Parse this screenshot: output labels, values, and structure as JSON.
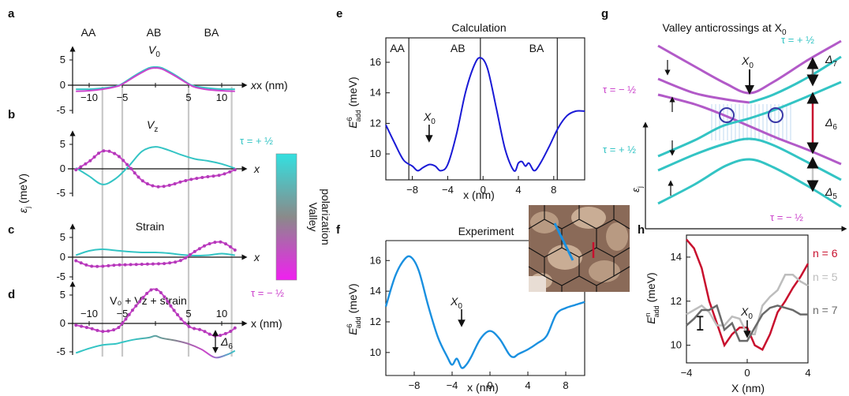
{
  "colors": {
    "valley_up": "#33c4c4",
    "valley_down": "#cc44cc",
    "valley_down_dark": "#b23ab8",
    "calc_blue": "#1a1ad6",
    "exp_blue": "#1a90e0",
    "n6": "#c8102e",
    "n5": "#bdbdbd",
    "n7": "#6a6a6a",
    "arrow_red": "#c8102e",
    "arrow_grey": "#777777",
    "arrow_light": "#c8c8c8",
    "circle": "#3a3aa8",
    "guide": "#c8c8c8"
  },
  "panel_labels": {
    "a": "a",
    "b": "b",
    "c": "c",
    "d": "d",
    "e": "e",
    "f": "f",
    "g": "g",
    "h": "h"
  },
  "left": {
    "region_labels": [
      "AA",
      "AB",
      "BA"
    ],
    "y_axis_label": "ε",
    "y_axis_sub": "j",
    "y_axis_unit": " (meV)",
    "x_label_short": "x",
    "x_label": "x (nm)",
    "panel_a_title": "V",
    "panel_a_title_sub": "0",
    "panel_b_title": "V",
    "panel_b_title_sub": "z",
    "panel_c_title": "Strain",
    "panel_d_title": "V₀ + Vz + strain",
    "delta6": "Δ",
    "delta6_sub": "6",
    "guide_lines_x": [
      -8,
      -5,
      5,
      11.5
    ]
  },
  "colorbar": {
    "top_label": "τ = + ½",
    "bottom_label": "τ = − ½",
    "title_line1": "Valley",
    "title_line2": "polarization"
  },
  "chart_data": [
    {
      "panel": "a",
      "type": "line",
      "title": "V0",
      "xlim": [
        -12.5,
        12.5
      ],
      "ylim": [
        -5,
        5
      ],
      "xticks": [
        -10,
        -5,
        0,
        5,
        10
      ],
      "yticks": [
        -5,
        0,
        5
      ],
      "series": [
        {
          "x": [
            -12,
            -10,
            -8,
            -6,
            -5,
            -3,
            -1,
            0,
            1,
            3,
            5,
            6,
            8,
            10,
            12
          ],
          "y": [
            -0.8,
            -0.8,
            -0.6,
            -0.2,
            0.3,
            2.0,
            3.4,
            3.6,
            3.4,
            2.0,
            0.3,
            -0.2,
            -0.6,
            -0.8,
            -0.8
          ]
        },
        {
          "x": [
            -12,
            -10,
            -8,
            -6,
            -5,
            -3,
            -1,
            0,
            1,
            3,
            5,
            6,
            8,
            10,
            12
          ],
          "y": [
            -1.2,
            -1.1,
            -0.8,
            -0.3,
            0.2,
            1.8,
            3.2,
            3.4,
            3.2,
            1.8,
            0.2,
            -0.4,
            -0.9,
            -1.1,
            -1.2
          ]
        }
      ]
    },
    {
      "panel": "b",
      "type": "line",
      "title": "Vz",
      "ylim": [
        -5,
        5
      ],
      "yticks": [
        -5,
        0,
        5
      ],
      "series": [
        {
          "x": [
            -12,
            -10,
            -8,
            -6,
            -4,
            -2,
            0,
            2,
            4,
            6,
            8,
            10,
            12
          ],
          "y": [
            0.2,
            -1.5,
            -3.2,
            -2.0,
            0.6,
            3.6,
            4.5,
            3.8,
            2.8,
            2.0,
            1.6,
            1.0,
            0.1
          ]
        },
        {
          "x": [
            -12,
            -10,
            -8,
            -6,
            -4,
            -2,
            0,
            2,
            4,
            6,
            8,
            10,
            12
          ],
          "y": [
            -0.2,
            1.5,
            3.6,
            3.0,
            0.5,
            -2.4,
            -3.6,
            -3.4,
            -2.6,
            -2.0,
            -1.6,
            -1.2,
            -0.2
          ]
        }
      ]
    },
    {
      "panel": "c",
      "type": "line",
      "title": "Strain",
      "ylim": [
        -5,
        5
      ],
      "yticks": [
        -5,
        0,
        5
      ],
      "series": [
        {
          "x": [
            -12,
            -10,
            -8,
            -6,
            -4,
            -2,
            0,
            2,
            4,
            6,
            8,
            10,
            12
          ],
          "y": [
            0.5,
            1.6,
            2.0,
            1.7,
            1.4,
            1.2,
            1.2,
            1.0,
            0.6,
            0.4,
            0.5,
            0.9,
            0.5
          ]
        },
        {
          "x": [
            -12,
            -10,
            -8,
            -6,
            -4,
            -2,
            0,
            2,
            4,
            6,
            8,
            10,
            12
          ],
          "y": [
            -0.9,
            -2.2,
            -2.3,
            -2.0,
            -1.9,
            -1.8,
            -1.7,
            -1.5,
            -0.7,
            1.5,
            3.3,
            3.8,
            1.8
          ]
        }
      ]
    },
    {
      "panel": "d",
      "type": "line",
      "title": "V0 + Vz + strain",
      "ylim": [
        -5,
        5
      ],
      "yticks": [
        -5,
        0,
        5
      ],
      "series": [
        {
          "x": [
            -12,
            -10,
            -8,
            -6,
            -5,
            -3,
            -1,
            0,
            1,
            3,
            5,
            7,
            9,
            11,
            12
          ],
          "y": [
            -0.3,
            -0.8,
            -1.4,
            -1.0,
            0.0,
            3.0,
            5.6,
            6.0,
            5.2,
            2.0,
            -0.5,
            -1.2,
            -2.2,
            -1.6,
            -0.8
          ]
        },
        {
          "x": [
            -12,
            -10,
            -8,
            -6,
            -5,
            -3,
            -1,
            0,
            1,
            3,
            5,
            7,
            9,
            11,
            12
          ],
          "y": [
            -5.2,
            -4.4,
            -3.8,
            -3.6,
            -3.3,
            -2.8,
            -2.5,
            -2.2,
            -2.6,
            -3.0,
            -3.6,
            -4.6,
            -6.0,
            -5.4,
            -4.8
          ]
        }
      ]
    },
    {
      "panel": "e",
      "type": "line",
      "title": "Calculation",
      "xlabel": "x (nm)",
      "ylabel": "E6add (meV)",
      "ylabel_base": "E",
      "ylabel_sup": "6",
      "ylabel_sub": "add",
      "ylabel_unit": " (meV)",
      "xlim": [
        -11,
        11.5
      ],
      "ylim": [
        8.3,
        17.6
      ],
      "xticks": [
        -8,
        -4,
        0,
        4,
        8
      ],
      "yticks": [
        10,
        12,
        14,
        16
      ],
      "regions": [
        "AA",
        "AB",
        "BA"
      ],
      "region_lines_x": [
        -8.4,
        -0.3,
        8.4
      ],
      "annotation": "X0",
      "annotation_x": -6.1,
      "x": [
        -11,
        -10,
        -9,
        -8,
        -7.4,
        -6.8,
        -6.1,
        -5.4,
        -4.8,
        -4,
        -3,
        -2,
        -1,
        -0.3,
        0.5,
        1.5,
        2.5,
        3.5,
        4,
        4.4,
        4.8,
        5.2,
        5.8,
        6.5,
        7.5,
        8.5,
        9.5,
        10.5,
        11.5
      ],
      "y": [
        11.9,
        10.7,
        9.6,
        9.2,
        8.9,
        9.1,
        9.3,
        9.2,
        8.9,
        9.3,
        11.3,
        14.0,
        15.8,
        16.3,
        15.6,
        13.0,
        10.3,
        8.9,
        9.4,
        9.5,
        9.2,
        9.4,
        8.9,
        9.4,
        10.5,
        11.7,
        12.5,
        12.8,
        12.8
      ]
    },
    {
      "panel": "f",
      "type": "line",
      "title": "Experiment",
      "xlabel": "x (nm)",
      "ylabel": "E6add (meV)",
      "ylabel_base": "E",
      "ylabel_sup": "6",
      "ylabel_sub": "add",
      "ylabel_unit": " (meV)",
      "xlim": [
        -11,
        10
      ],
      "ylim": [
        8.5,
        17.3
      ],
      "xticks": [
        -8,
        -4,
        0,
        4,
        8
      ],
      "yticks": [
        10,
        12,
        14,
        16
      ],
      "annotation": "X0",
      "annotation_x": -3,
      "x": [
        -11,
        -10,
        -9,
        -8.3,
        -7.5,
        -6.5,
        -5.5,
        -4.5,
        -4,
        -3.5,
        -3,
        -2.5,
        -2,
        -1,
        0,
        1,
        2,
        2.5,
        3,
        4,
        5,
        6,
        7,
        8,
        9,
        10
      ],
      "y": [
        13.0,
        15.0,
        16.1,
        16.2,
        15.3,
        13.0,
        11.0,
        9.7,
        9.2,
        9.6,
        9.0,
        9.2,
        9.7,
        10.9,
        11.4,
        10.9,
        9.9,
        9.7,
        9.9,
        10.2,
        10.6,
        11.1,
        12.5,
        12.9,
        13.1,
        13.3
      ]
    },
    {
      "panel": "g",
      "type": "line",
      "title": "Valley anticrossings at X0",
      "title_text": "Valley anticrossings at X",
      "title_sub": "0",
      "ylabel": "εj",
      "annotation": "X0",
      "labels": {
        "tau_plus": "τ = + ½",
        "tau_minus": "τ = − ½",
        "delta7": "Δ7",
        "delta6": "Δ6",
        "delta5": "Δ5"
      }
    },
    {
      "panel": "h",
      "type": "line",
      "xlabel": "X (nm)",
      "ylabel": "Enadd (meV)",
      "ylabel_base": "E",
      "ylabel_sup": "n",
      "ylabel_sub": "add",
      "ylabel_unit": " (meV)",
      "xlim": [
        -4,
        4
      ],
      "ylim": [
        9.2,
        15.0
      ],
      "xticks": [
        -4,
        0,
        4
      ],
      "yticks": [
        10,
        12,
        14
      ],
      "annotation": "X0",
      "annotation_x": 0,
      "legend": [
        "n = 6",
        "n = 5",
        "n = 7"
      ],
      "errorbar": {
        "x": -3.1,
        "y": 11.0,
        "err": 0.3
      },
      "series": [
        {
          "name": "n = 6",
          "x": [
            -4,
            -3.5,
            -3,
            -2.5,
            -2,
            -1.5,
            -1,
            -0.5,
            0,
            0.5,
            1,
            1.5,
            2,
            2.5,
            3,
            3.5,
            4
          ],
          "y": [
            14.8,
            14.4,
            13.5,
            12.0,
            11.0,
            10.0,
            10.5,
            10.8,
            10.8,
            10.0,
            9.8,
            10.5,
            11.5,
            12.0,
            12.6,
            13.1,
            13.7
          ]
        },
        {
          "name": "n = 5",
          "x": [
            -4,
            -3.5,
            -3,
            -2.5,
            -2,
            -1.5,
            -1,
            -0.5,
            0,
            0.5,
            1,
            1.5,
            2,
            2.5,
            3,
            3.5,
            4
          ],
          "y": [
            11.4,
            11.6,
            11.8,
            11.5,
            10.9,
            10.9,
            11.3,
            11.2,
            10.5,
            10.5,
            11.8,
            12.2,
            12.5,
            13.2,
            13.2,
            12.9,
            12.7
          ]
        },
        {
          "name": "n = 7",
          "x": [
            -4,
            -3.5,
            -3,
            -2.5,
            -2,
            -1.5,
            -1,
            -0.5,
            0,
            0.5,
            1,
            1.5,
            2,
            2.5,
            3,
            3.5,
            4
          ],
          "y": [
            10.9,
            11.2,
            11.6,
            11.6,
            11.8,
            10.7,
            11.0,
            10.2,
            10.2,
            10.8,
            11.4,
            11.7,
            11.8,
            11.7,
            11.6,
            11.4,
            11.4
          ]
        }
      ]
    }
  ]
}
